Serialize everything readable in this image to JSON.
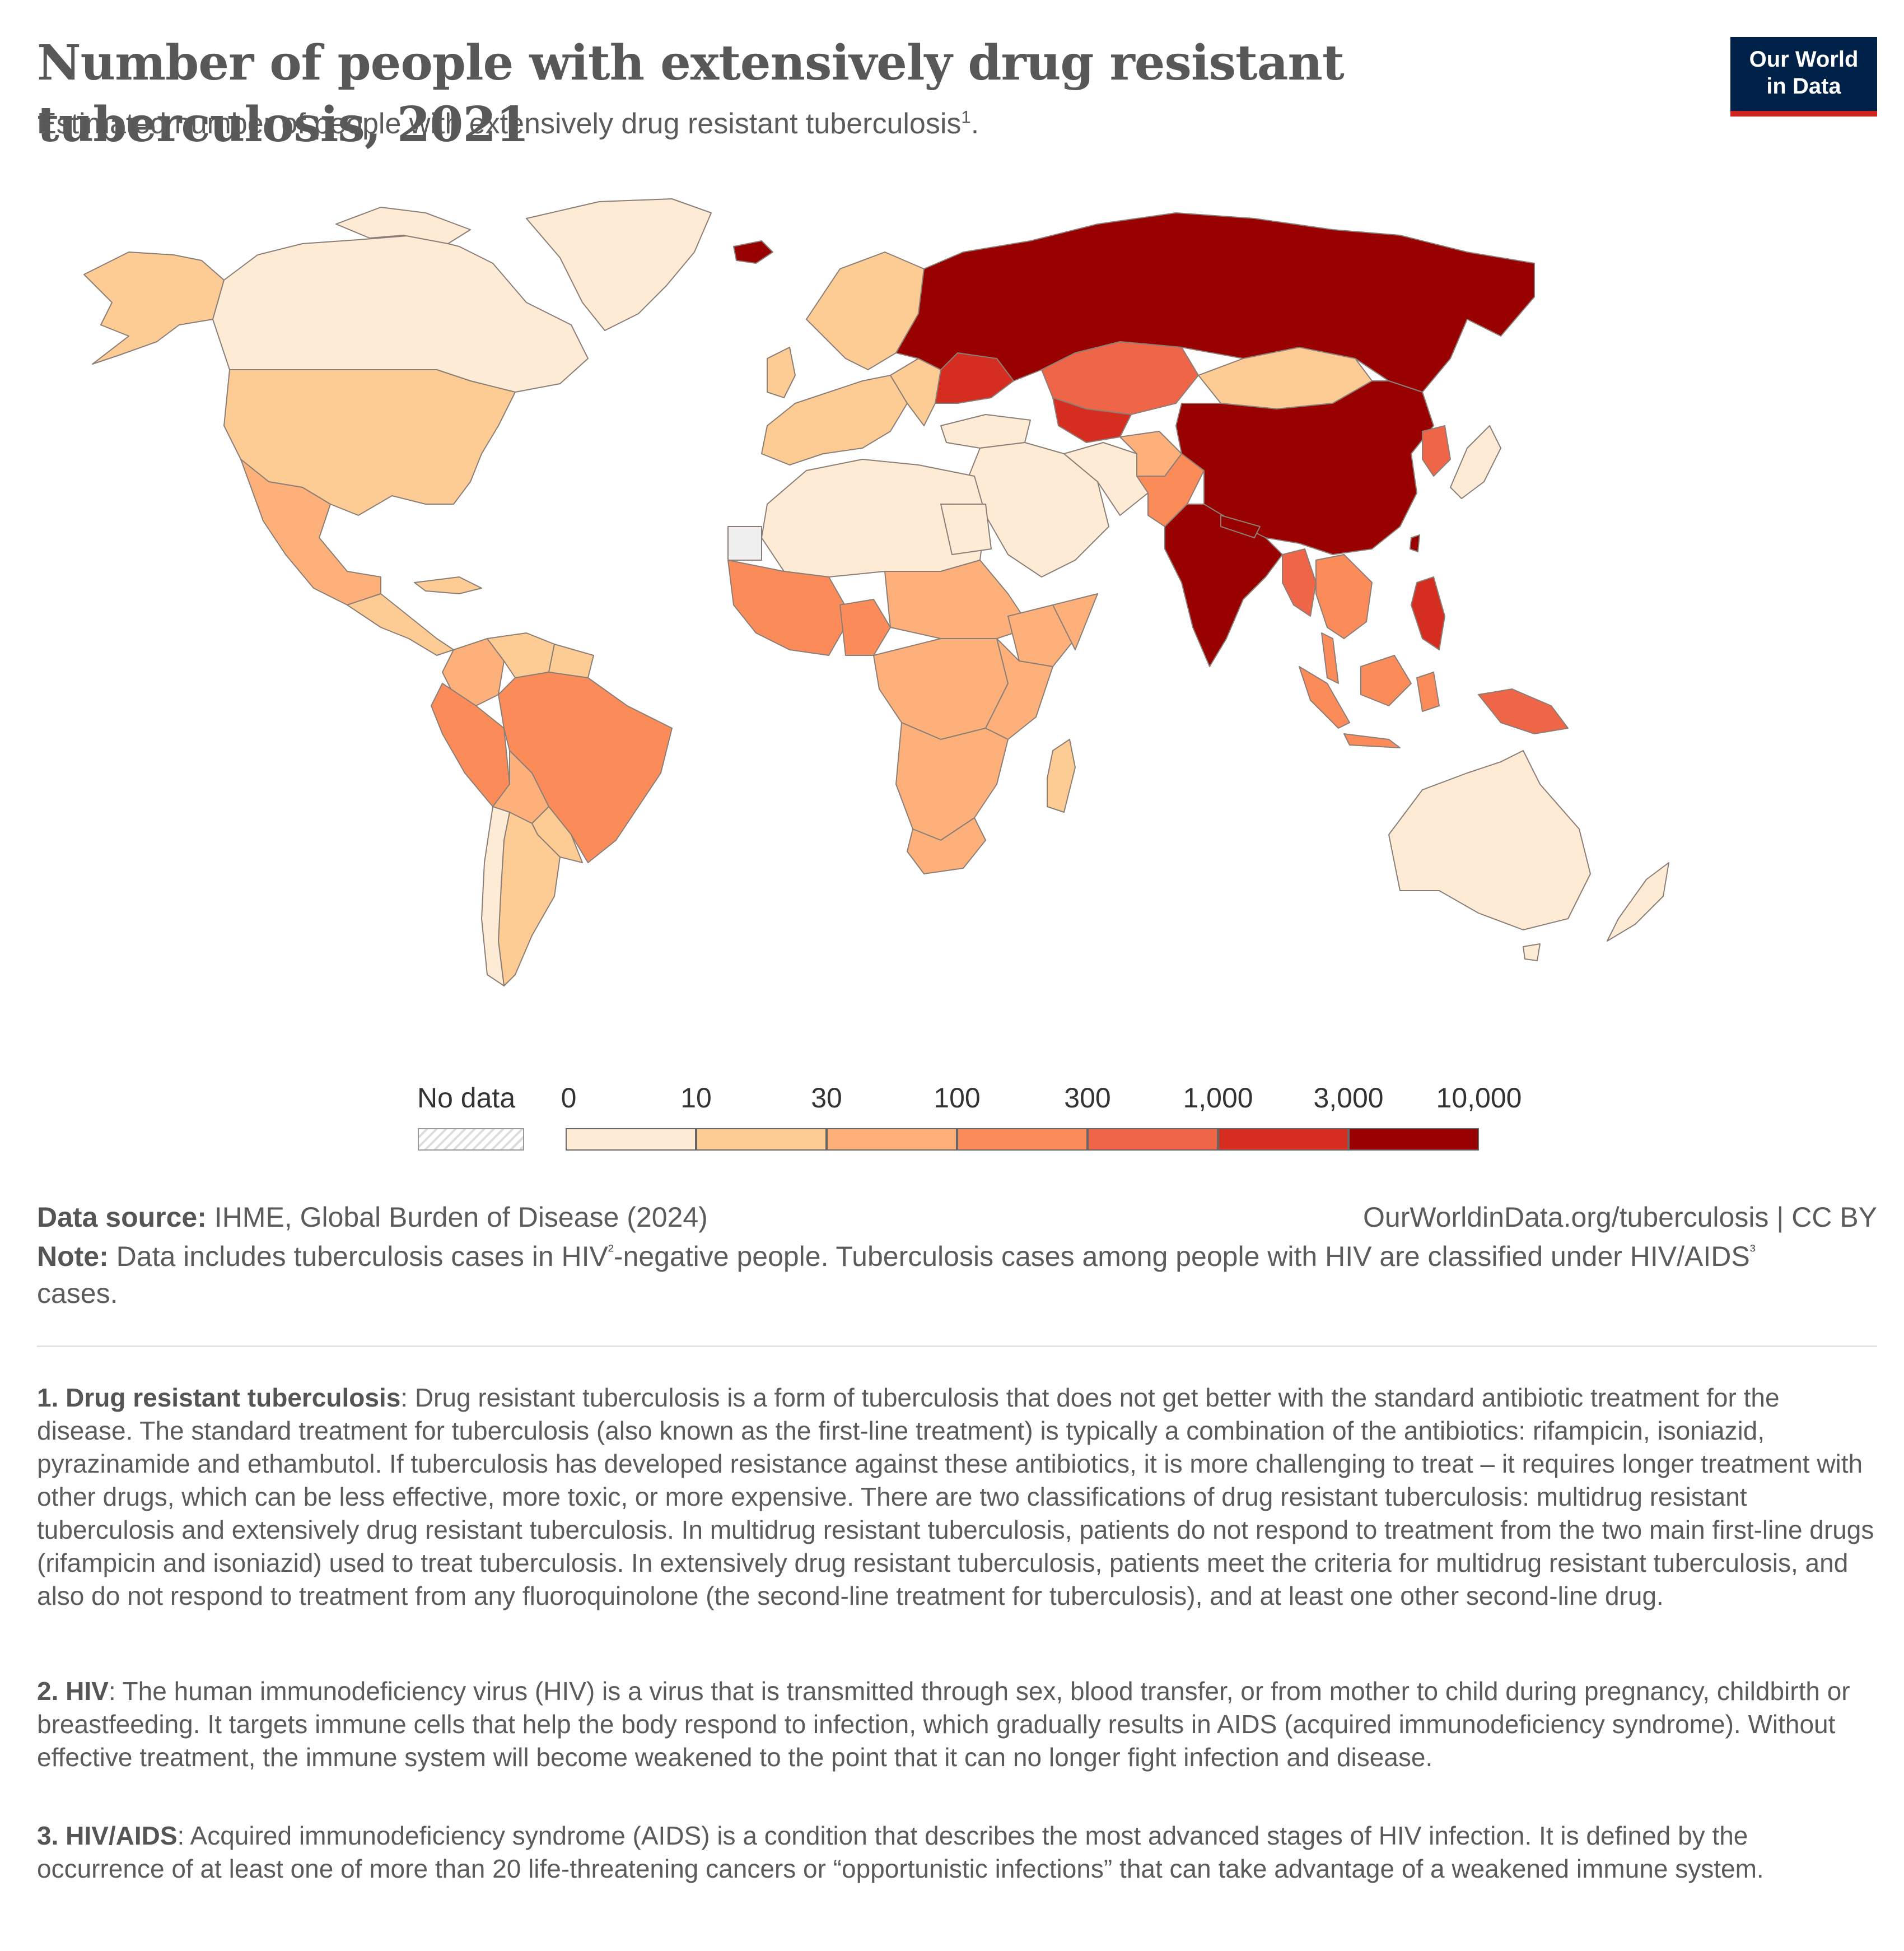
{
  "header": {
    "title": "Number of people with extensively drug resistant tuberculosis, 2021",
    "subtitle": "Estimated number of people with extensively drug resistant tuberculosis",
    "subtitle_ref": "1",
    "subtitle_end": ".",
    "logo_line1": "Our World",
    "logo_line2": "in Data"
  },
  "colors": {
    "nodata": "#f0f0f0",
    "ocean": "#ffffff",
    "bin_0": "#fdebd6",
    "bin_1": "#fdcc95",
    "bin_2": "#fdb07a",
    "bin_3": "#fb8c5a",
    "bin_4": "#ef6548",
    "bin_5": "#d52e21",
    "bin_6": "#990000",
    "border": "#8a7e76"
  },
  "legend": {
    "nodata_label": "No data",
    "ticks": [
      "0",
      "10",
      "30",
      "100",
      "300",
      "1,000",
      "3,000",
      "10,000"
    ],
    "bin_colors": [
      "#fdebd6",
      "#fdcc95",
      "#fdb07a",
      "#fb8c5a",
      "#ef6548",
      "#d52e21",
      "#990000"
    ]
  },
  "chart_data": {
    "type": "choropleth",
    "title": "Number of people with extensively drug resistant tuberculosis, 2021",
    "year": 2021,
    "scale_bins": [
      0,
      10,
      30,
      100,
      300,
      1000,
      3000,
      10000
    ],
    "regions": [
      {
        "region": "Russia",
        "bin": 6
      },
      {
        "region": "China",
        "bin": 6
      },
      {
        "region": "India",
        "bin": 6
      },
      {
        "region": "Greenland",
        "bin": 0
      },
      {
        "region": "Iceland",
        "bin": 6
      },
      {
        "region": "Canada",
        "bin": 0
      },
      {
        "region": "Alaska",
        "bin": 1
      },
      {
        "region": "United States",
        "bin": 1
      },
      {
        "region": "Mexico",
        "bin": 2
      },
      {
        "region": "Central America",
        "bin": 1
      },
      {
        "region": "Colombia",
        "bin": 2
      },
      {
        "region": "Venezuela",
        "bin": 1
      },
      {
        "region": "Peru",
        "bin": 3
      },
      {
        "region": "Brazil",
        "bin": 3
      },
      {
        "region": "Bolivia",
        "bin": 2
      },
      {
        "region": "Argentina",
        "bin": 1
      },
      {
        "region": "Chile",
        "bin": 0
      },
      {
        "region": "Kazakhstan",
        "bin": 4
      },
      {
        "region": "Ukraine",
        "bin": 5
      },
      {
        "region": "Uzbekistan",
        "bin": 5
      },
      {
        "region": "Mongolia",
        "bin": 1
      },
      {
        "region": "Pakistan",
        "bin": 3
      },
      {
        "region": "Afghanistan",
        "bin": 2
      },
      {
        "region": "Myanmar",
        "bin": 4
      },
      {
        "region": "Indochina",
        "bin": 3
      },
      {
        "region": "Philippines",
        "bin": 5
      },
      {
        "region": "Indonesia",
        "bin": 3
      },
      {
        "region": "Papua New Guinea",
        "bin": 4
      },
      {
        "region": "Korean Peninsula",
        "bin": 4
      },
      {
        "region": "Japan",
        "bin": 0
      },
      {
        "region": "Australia",
        "bin": 0
      },
      {
        "region": "New Zealand",
        "bin": 0
      },
      {
        "region": "Nigeria",
        "bin": 3
      },
      {
        "region": "South Africa",
        "bin": 2
      },
      {
        "region": "DR Congo",
        "bin": 2
      },
      {
        "region": "Ethiopia",
        "bin": 2
      },
      {
        "region": "Madagascar",
        "bin": 1
      },
      {
        "region": "North Africa",
        "bin": 0
      },
      {
        "region": "Western Sahara",
        "bin": null
      },
      {
        "region": "Western Europe",
        "bin": 1
      },
      {
        "region": "Middle East",
        "bin": 0
      }
    ]
  },
  "footer": {
    "source_label": "Data source:",
    "source_text": "IHME, Global Burden of Disease (2024)",
    "url_text": "OurWorldinData.org/tuberculosis | CC BY",
    "note_label": "Note:",
    "note_part1": "Data includes tuberculosis cases in HIV",
    "note_ref1": "²",
    "note_part2": "-negative people. Tuberculosis cases among people with HIV are classified under HIV/AIDS",
    "note_ref2": "³",
    "note_part3": " cases."
  },
  "footnotes": [
    {
      "label": "1. Drug resistant tuberculosis",
      "text": ": Drug resistant tuberculosis is a form of tuberculosis that does not get better with the standard antibiotic treatment for the disease. The standard treatment for tuberculosis (also known as the first-line treatment) is typically a combination of the antibiotics: rifampicin, isoniazid, pyrazinamide and ethambutol. If tuberculosis has developed resistance against these antibiotics, it is more challenging to treat – it requires longer treatment with other drugs, which can be less effective, more toxic, or more expensive. There are two classifications of drug resistant tuberculosis: multidrug resistant tuberculosis and extensively drug resistant tuberculosis. In multidrug resistant tuberculosis, patients do not respond to treatment from the two main first-line drugs (rifampicin and isoniazid) used to treat tuberculosis. In extensively drug resistant tuberculosis, patients meet the criteria for multidrug resistant tuberculosis, and also do not respond to treatment from any fluoroquinolone (the second-line treatment for tuberculosis), and at least one other second-line drug."
    },
    {
      "label": "2. HIV",
      "text": ": The human immunodeficiency virus (HIV) is a virus that is transmitted through sex, blood transfer, or from mother to child during pregnancy, childbirth or breastfeeding. It targets immune cells that help the body respond to infection, which gradually results in AIDS (acquired immunodeficiency syndrome). Without effective treatment, the immune system will become weakened to the point that it can no longer fight infection and disease."
    },
    {
      "label": "3. HIV/AIDS",
      "text": ": Acquired immunodeficiency syndrome (AIDS) is a condition that describes the most advanced stages of HIV infection. It is defined by the occurrence of at least one of more than 20 life-threatening cancers or “opportunistic infections” that can take advantage of a weakened immune system."
    }
  ]
}
